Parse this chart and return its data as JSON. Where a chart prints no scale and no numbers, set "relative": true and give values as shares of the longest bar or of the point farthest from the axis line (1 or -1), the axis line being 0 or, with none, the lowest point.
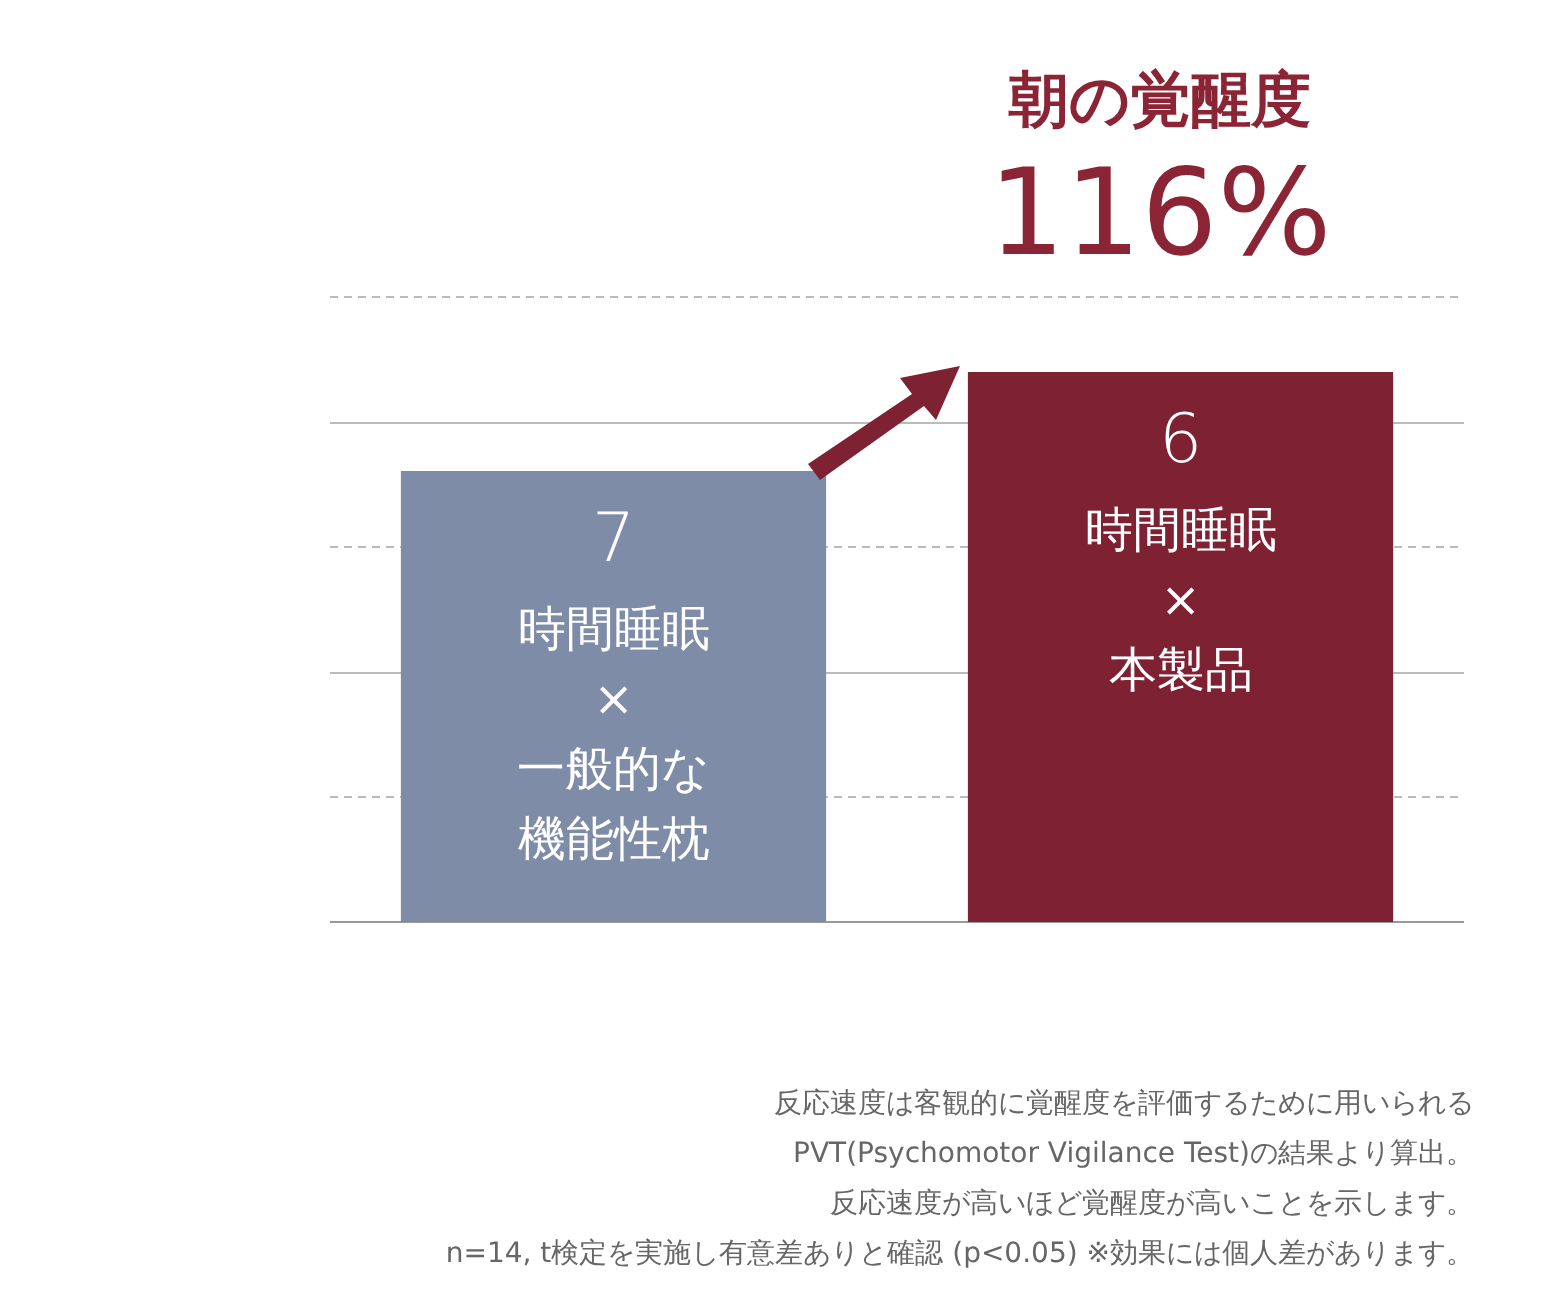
{
  "chart_data": {
    "type": "bar",
    "title": "朝の覚醒度",
    "categories": [
      "7\n時間睡眠\n×\n一般的な機能性枕",
      "6\n時間睡眠\n×\n本製品"
    ],
    "values": [
      0.82,
      1
    ],
    "colors": [
      "#7f8ca8",
      "#7e2233"
    ],
    "relative": true,
    "legend": false,
    "ref_lines": [
      {
        "axis": "y",
        "value": 0.229,
        "color": "#bbbbbb",
        "line_style": "dashed"
      },
      {
        "axis": "y",
        "value": 0.455,
        "color": "#bbbbbb",
        "line_style": "solid"
      },
      {
        "axis": "y",
        "value": 0.684,
        "color": "#bbbbbb",
        "line_style": "dashed"
      },
      {
        "axis": "y",
        "value": 0.909,
        "color": "#bbbbbb",
        "line_style": "solid"
      },
      {
        "axis": "y",
        "value": 1.138,
        "color": "#bbbbbb",
        "line_style": "dashed"
      }
    ],
    "annotations": [
      "116%",
      "反応速度は客観的に覚醒度を評価するために用いられる",
      "PVT(Psychomotor Vigilance Test)の結果より算出。",
      "反応速度が高いほど覚醒度が高いことを示します。",
      "n=14, t検定を実施し有意差ありと確認 (p<0.05) ※効果には個人差があります。"
    ]
  }
}
